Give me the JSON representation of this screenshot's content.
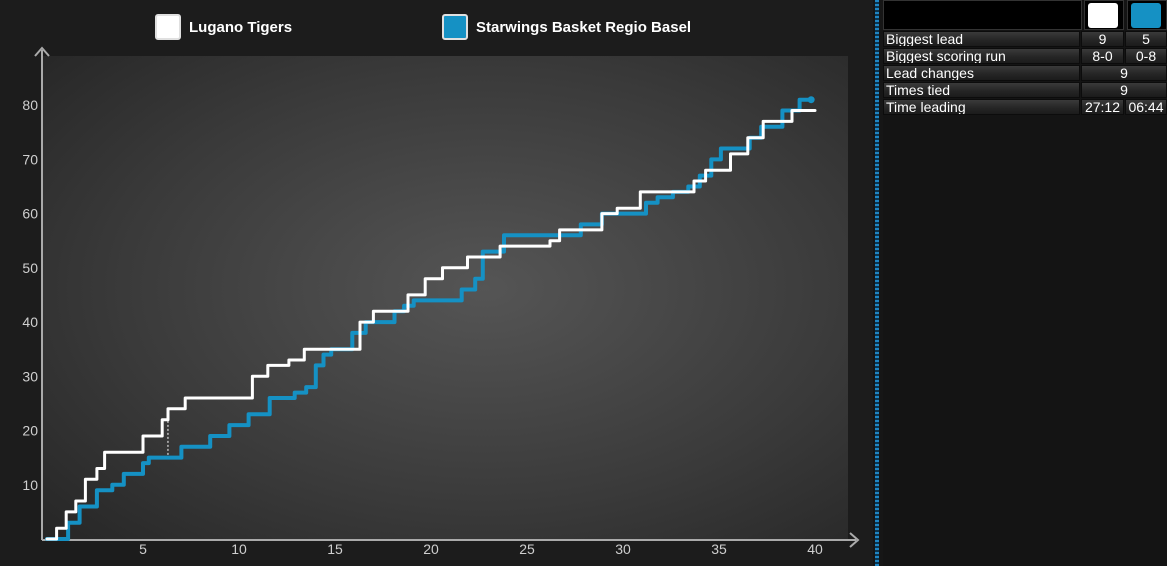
{
  "chart_data": {
    "type": "line",
    "xlim": [
      0,
      40
    ],
    "ylim": [
      0,
      85
    ],
    "x_ticks": [
      5,
      10,
      15,
      20,
      25,
      30,
      35,
      40
    ],
    "y_ticks": [
      10,
      20,
      30,
      40,
      50,
      60,
      70,
      80
    ],
    "series": [
      {
        "name": "Lugano Tigers",
        "color": "#ffffff",
        "points": [
          [
            0,
            0
          ],
          [
            0.5,
            2
          ],
          [
            1.0,
            5
          ],
          [
            1.5,
            7
          ],
          [
            2.0,
            11
          ],
          [
            2.6,
            13
          ],
          [
            3.0,
            16
          ],
          [
            4.8,
            16
          ],
          [
            5.0,
            19
          ],
          [
            6.0,
            22
          ],
          [
            6.3,
            24
          ],
          [
            7.2,
            26
          ],
          [
            10.2,
            26
          ],
          [
            10.7,
            30
          ],
          [
            11.5,
            32
          ],
          [
            12.6,
            33
          ],
          [
            13.4,
            35
          ],
          [
            15.5,
            35
          ],
          [
            16.3,
            40
          ],
          [
            17.0,
            42
          ],
          [
            18.3,
            42
          ],
          [
            18.8,
            45
          ],
          [
            19.7,
            48
          ],
          [
            20.6,
            50
          ],
          [
            21.6,
            50
          ],
          [
            21.9,
            52
          ],
          [
            23.0,
            52
          ],
          [
            23.6,
            54
          ],
          [
            25.8,
            54
          ],
          [
            26.2,
            55
          ],
          [
            26.7,
            57
          ],
          [
            28.1,
            57
          ],
          [
            28.9,
            60
          ],
          [
            29.7,
            61
          ],
          [
            30.9,
            64
          ],
          [
            33.2,
            64
          ],
          [
            33.7,
            66
          ],
          [
            34.3,
            68
          ],
          [
            35.2,
            68
          ],
          [
            35.6,
            71
          ],
          [
            36.5,
            74
          ],
          [
            37.3,
            77
          ],
          [
            38.0,
            77
          ],
          [
            38.8,
            79
          ],
          [
            40.0,
            79
          ]
        ]
      },
      {
        "name": "Starwings Basket Regio Basel",
        "color": "#1591c4",
        "points": [
          [
            0,
            0
          ],
          [
            0.9,
            0
          ],
          [
            1.1,
            3
          ],
          [
            1.7,
            6
          ],
          [
            2.3,
            6
          ],
          [
            2.6,
            9
          ],
          [
            3.4,
            10
          ],
          [
            4.0,
            12
          ],
          [
            5.0,
            14
          ],
          [
            5.3,
            15
          ],
          [
            6.7,
            15
          ],
          [
            7.0,
            17
          ],
          [
            7.9,
            17
          ],
          [
            8.5,
            19
          ],
          [
            9.5,
            21
          ],
          [
            10.5,
            23
          ],
          [
            11.4,
            23
          ],
          [
            11.6,
            26
          ],
          [
            12.5,
            26
          ],
          [
            12.9,
            27
          ],
          [
            13.5,
            28
          ],
          [
            14.0,
            32
          ],
          [
            14.4,
            34
          ],
          [
            14.8,
            35
          ],
          [
            15.6,
            35
          ],
          [
            15.9,
            38
          ],
          [
            16.6,
            40
          ],
          [
            17.3,
            40
          ],
          [
            18.1,
            42
          ],
          [
            18.6,
            43
          ],
          [
            19.1,
            44
          ],
          [
            20.9,
            44
          ],
          [
            21.6,
            46
          ],
          [
            22.3,
            48
          ],
          [
            22.7,
            53
          ],
          [
            23.8,
            56
          ],
          [
            25.5,
            56
          ],
          [
            27.0,
            56
          ],
          [
            27.8,
            58
          ],
          [
            28.5,
            58
          ],
          [
            28.9,
            60
          ],
          [
            30.5,
            60
          ],
          [
            31.2,
            62
          ],
          [
            31.8,
            63
          ],
          [
            32.6,
            64
          ],
          [
            33.4,
            65
          ],
          [
            34.0,
            67
          ],
          [
            34.6,
            70
          ],
          [
            35.1,
            72
          ],
          [
            36.1,
            72
          ],
          [
            36.6,
            74
          ],
          [
            37.2,
            76
          ],
          [
            38.3,
            79
          ],
          [
            39.2,
            81
          ],
          [
            39.8,
            81
          ]
        ]
      }
    ]
  },
  "legend": [
    {
      "label": "Lugano Tigers",
      "color": "#ffffff"
    },
    {
      "label": "Starwings Basket Regio Basel",
      "color": "#1591c4"
    }
  ],
  "stats": {
    "team_colors": [
      "#ffffff",
      "#1591c4"
    ],
    "rows": [
      {
        "label": "Biggest lead",
        "v1": "9",
        "v2": "5"
      },
      {
        "label": "Biggest scoring run",
        "v1": "8-0",
        "v2": "0-8"
      },
      {
        "label": "Lead changes",
        "span": "9"
      },
      {
        "label": "Times tied",
        "span": "9"
      },
      {
        "label": "Time leading",
        "v1": "27:12",
        "v2": "06:44"
      }
    ]
  }
}
